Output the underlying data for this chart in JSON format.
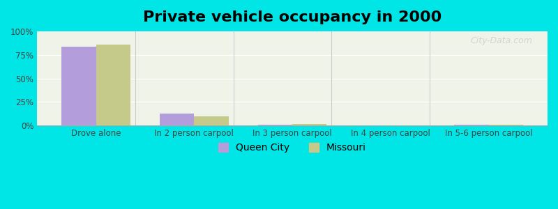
{
  "title": "Private vehicle occupancy in 2000",
  "categories": [
    "Drove alone",
    "In 2 person carpool",
    "In 3 person carpool",
    "In 4 person carpool",
    "In 5-6 person carpool"
  ],
  "queen_city": [
    84,
    13,
    1,
    0.3,
    1
  ],
  "missouri": [
    86,
    10,
    1.5,
    0.4,
    0.5
  ],
  "queen_city_color": "#b39ddb",
  "missouri_color": "#c5c98a",
  "background_color": "#00e5e5",
  "plot_bg_color_top": "#f0f4e8",
  "plot_bg_color_bottom": "#e8f5e0",
  "ylabel_ticks": [
    "0%",
    "25%",
    "50%",
    "75%",
    "100%"
  ],
  "ytick_vals": [
    0,
    25,
    50,
    75,
    100
  ],
  "ylim": [
    0,
    100
  ],
  "bar_width": 0.35,
  "title_fontsize": 16,
  "tick_fontsize": 8.5,
  "legend_fontsize": 10
}
